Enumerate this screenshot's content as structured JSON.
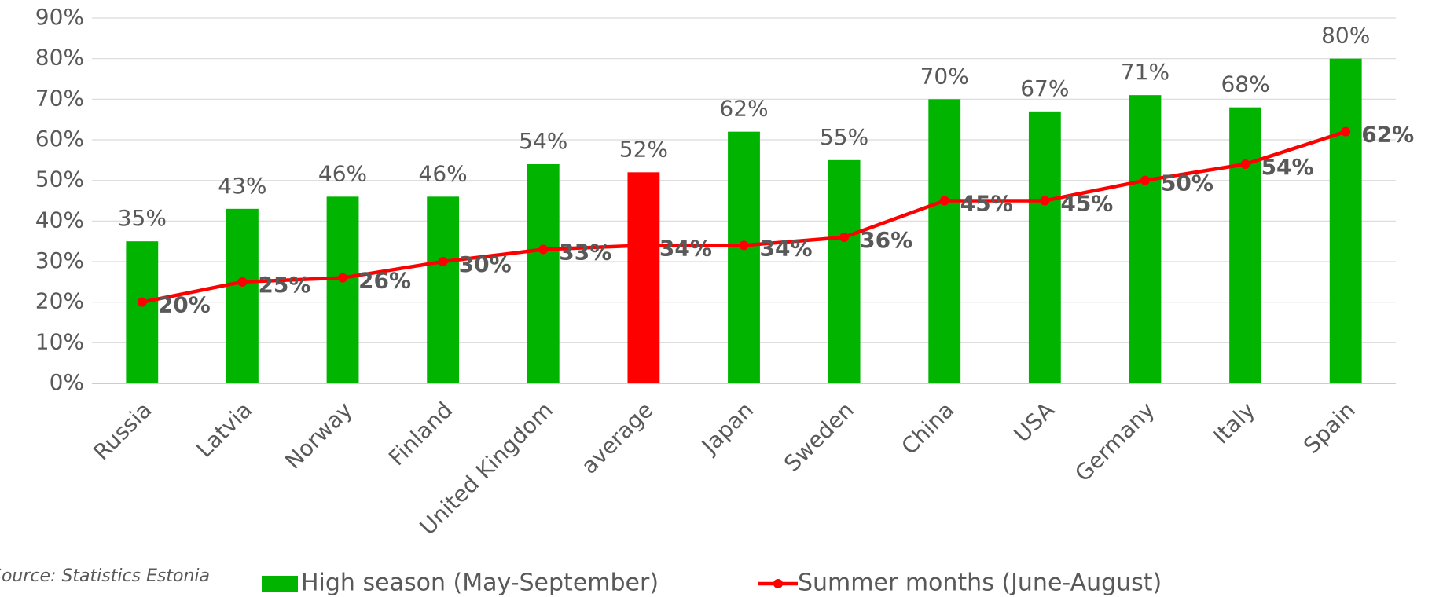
{
  "chart_data": {
    "type": "bar_line",
    "categories": [
      "Russia",
      "Latvia",
      "Norway",
      "Finland",
      "United Kingdom",
      "average",
      "Japan",
      "Sweden",
      "China",
      "USA",
      "Germany",
      "Italy",
      "Spain"
    ],
    "series": [
      {
        "name": "High season (May-September)",
        "type": "bar",
        "color": "#00b400",
        "colors": [
          "#00b400",
          "#00b400",
          "#00b400",
          "#00b400",
          "#00b400",
          "#ff0000",
          "#00b400",
          "#00b400",
          "#00b400",
          "#00b400",
          "#00b400",
          "#00b400",
          "#00b400"
        ],
        "values": [
          35,
          43,
          46,
          46,
          54,
          52,
          62,
          55,
          70,
          67,
          71,
          68,
          80
        ],
        "value_labels": [
          "35%",
          "43%",
          "46%",
          "46%",
          "54%",
          "52%",
          "62%",
          "55%",
          "70%",
          "67%",
          "71%",
          "68%",
          "80%"
        ]
      },
      {
        "name": "Summer months (June-August)",
        "type": "line",
        "color": "#ff0000",
        "values": [
          20,
          25,
          26,
          30,
          33,
          34,
          34,
          36,
          45,
          45,
          50,
          54,
          62
        ],
        "value_labels": [
          "20%",
          "25%",
          "26%",
          "30%",
          "33%",
          "34%",
          "34%",
          "36%",
          "45%",
          "45%",
          "50%",
          "54%",
          "62%"
        ]
      }
    ],
    "ylim": [
      0,
      90
    ],
    "yticks": [
      {
        "value": 0,
        "label": "0%"
      },
      {
        "value": 10,
        "label": "10%"
      },
      {
        "value": 20,
        "label": "20%"
      },
      {
        "value": 30,
        "label": "30%"
      },
      {
        "value": 40,
        "label": "40%"
      },
      {
        "value": 50,
        "label": "50%"
      },
      {
        "value": 60,
        "label": "60%"
      },
      {
        "value": 70,
        "label": "70%"
      },
      {
        "value": 80,
        "label": "80%"
      },
      {
        "value": 90,
        "label": "90%"
      }
    ],
    "grid": true,
    "legend": "bottom",
    "source": "Source: Statistics Estonia"
  }
}
